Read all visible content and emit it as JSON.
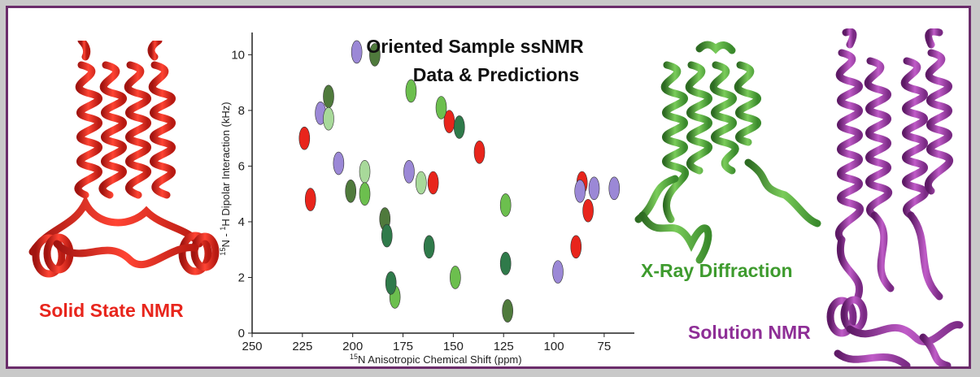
{
  "figure": {
    "title_line1": "Oriented Sample ssNMR",
    "title_line2": "Data & Predictions",
    "labels": {
      "solid_state": "Solid State NMR",
      "xray": "X-Ray Diffraction",
      "solution": "Solution NMR"
    },
    "colors": {
      "frame": "#6b2d6b",
      "solid_state": "#e8251c",
      "xray": "#3e9b2e",
      "solution": "#8e2e96"
    }
  },
  "chart_data": {
    "type": "scatter",
    "title": "Oriented Sample ssNMR Data & Predictions",
    "xlabel_sup": "15",
    "xlabel": "N Anisotropic Chemical Shift (ppm)",
    "ylabel_sup1": "15",
    "ylabel_mid": "N - ",
    "ylabel_sup2": "1",
    "ylabel_end": "H Dipolar Interaction (kHz)",
    "xlim": [
      250,
      60
    ],
    "x_reversed": true,
    "ylim": [
      0,
      10.8
    ],
    "xticks": [
      250,
      225,
      200,
      175,
      150,
      125,
      100,
      75
    ],
    "yticks": [
      0,
      2,
      4,
      6,
      8,
      10
    ],
    "grid": false,
    "series": [
      {
        "color": "#e8251c",
        "points": [
          [
            224,
            7.0
          ],
          [
            221,
            4.8
          ],
          [
            152,
            7.6
          ],
          [
            160,
            5.4
          ],
          [
            137,
            6.5
          ],
          [
            86,
            5.4
          ],
          [
            89,
            3.1
          ],
          [
            83,
            4.4
          ]
        ]
      },
      {
        "color": "#9b88d6",
        "points": [
          [
            198,
            10.1
          ],
          [
            216,
            7.9
          ],
          [
            207,
            6.1
          ],
          [
            172,
            5.8
          ],
          [
            98,
            2.2
          ],
          [
            87,
            5.1
          ],
          [
            80,
            5.2
          ],
          [
            70,
            5.2
          ]
        ]
      },
      {
        "color": "#4f7a3c",
        "points": [
          [
            189,
            10.0
          ],
          [
            212,
            8.5
          ],
          [
            201,
            5.1
          ],
          [
            184,
            4.1
          ],
          [
            123,
            0.8
          ]
        ]
      },
      {
        "color": "#a8d99a",
        "points": [
          [
            212,
            7.7
          ],
          [
            194,
            5.8
          ],
          [
            166,
            5.4
          ]
        ]
      },
      {
        "color": "#6cbf4e",
        "points": [
          [
            171,
            8.7
          ],
          [
            156,
            8.1
          ],
          [
            194,
            5.0
          ],
          [
            124,
            4.6
          ],
          [
            179,
            1.3
          ],
          [
            149,
            2.0
          ]
        ]
      },
      {
        "color": "#2f7a4a",
        "points": [
          [
            147,
            7.4
          ],
          [
            183,
            3.5
          ],
          [
            162,
            3.1
          ],
          [
            181,
            1.8
          ],
          [
            124,
            2.5
          ]
        ]
      }
    ]
  }
}
